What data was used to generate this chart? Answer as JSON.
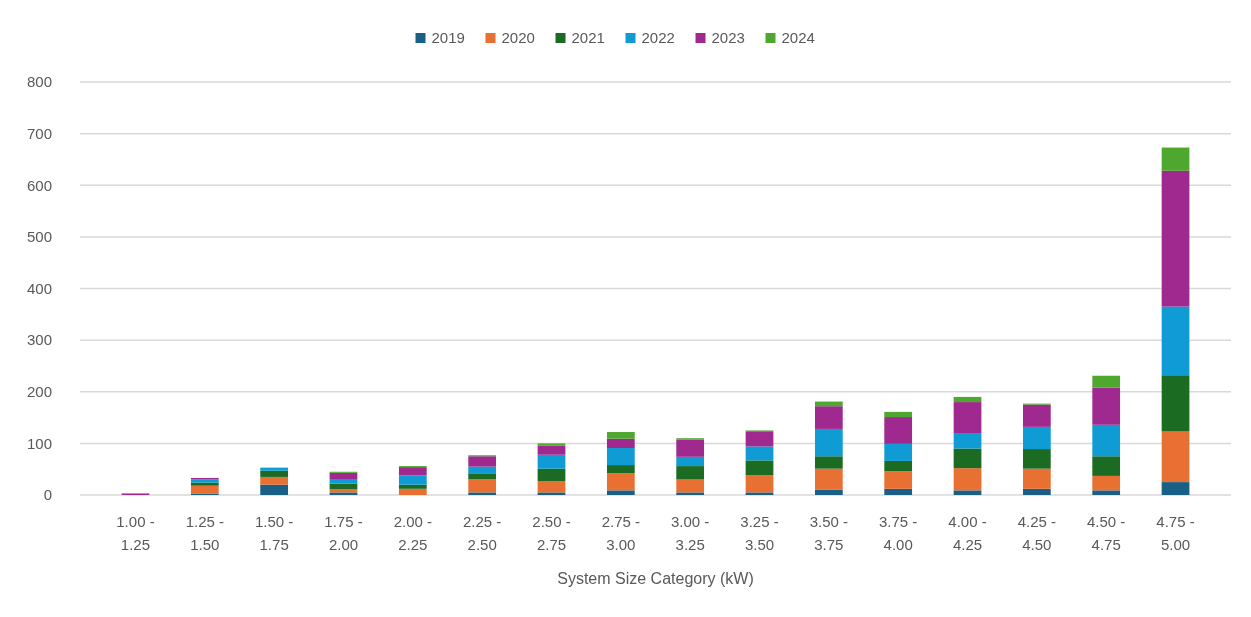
{
  "chart_data": {
    "type": "bar",
    "stacked": true,
    "xlabel": "System Size Category (kW)",
    "categories": [
      "1.00 - 1.25",
      "1.25 - 1.50",
      "1.50 - 1.75",
      "1.75 - 2.00",
      "2.00 - 2.25",
      "2.25 - 2.50",
      "2.50 - 2.75",
      "2.75 - 3.00",
      "3.00 - 3.25",
      "3.25 - 3.50",
      "3.50 - 3.75",
      "3.75 - 4.00",
      "4.00 - 4.25",
      "4.25 - 4.50",
      "4.50 - 4.75",
      "4.75 - 5.00"
    ],
    "series": [
      {
        "name": "2019",
        "color": "#1a5f85",
        "values": [
          0,
          3,
          20,
          5,
          0,
          5,
          5,
          9,
          5,
          5,
          10,
          12,
          9,
          12,
          9,
          25
        ]
      },
      {
        "name": "2020",
        "color": "#e87033",
        "values": [
          0,
          15,
          15,
          6,
          12,
          26,
          22,
          33,
          25,
          33,
          41,
          34,
          43,
          39,
          28,
          98
        ]
      },
      {
        "name": "2021",
        "color": "#1b6b23",
        "values": [
          0,
          6,
          12,
          11,
          8,
          11,
          24,
          16,
          26,
          29,
          24,
          20,
          38,
          38,
          38,
          109
        ]
      },
      {
        "name": "2022",
        "color": "#0f9bd3",
        "values": [
          0,
          6,
          6,
          9,
          18,
          13,
          27,
          33,
          18,
          27,
          53,
          33,
          30,
          43,
          61,
          133
        ]
      },
      {
        "name": "2023",
        "color": "#a0298f",
        "values": [
          3,
          3,
          0,
          12,
          16,
          20,
          18,
          18,
          33,
          28,
          44,
          52,
          60,
          43,
          72,
          263
        ]
      },
      {
        "name": "2024",
        "color": "#4ea72e",
        "values": [
          0,
          0,
          0,
          2,
          2,
          2,
          4,
          13,
          3,
          3,
          9,
          10,
          10,
          2,
          23,
          45
        ]
      }
    ],
    "ylim": [
      0,
      800
    ],
    "yticks": [
      0,
      100,
      200,
      300,
      400,
      500,
      600,
      700,
      800
    ],
    "grid": "y",
    "legend": "top"
  }
}
